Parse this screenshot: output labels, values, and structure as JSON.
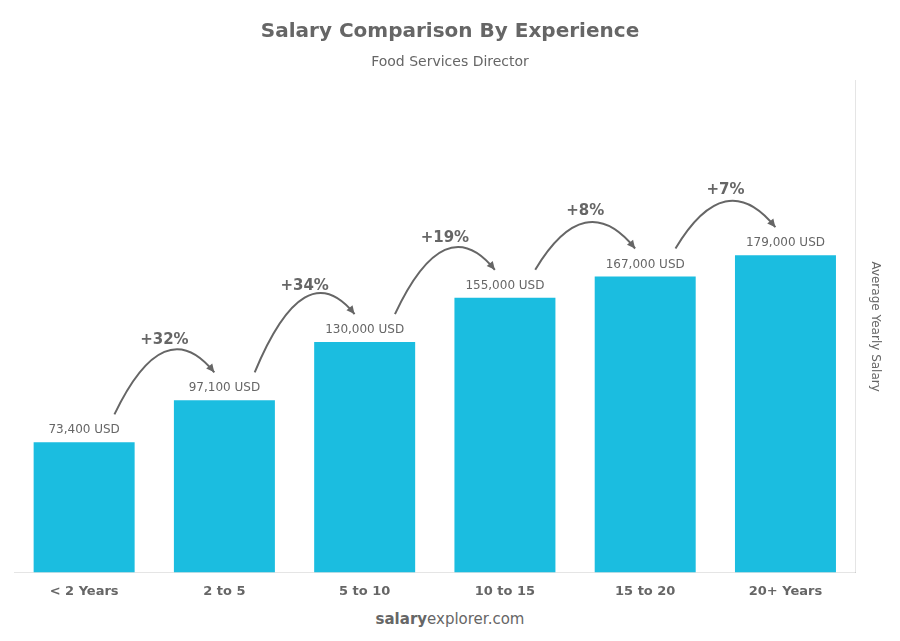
{
  "chart_data": {
    "type": "bar",
    "title": "Salary Comparison By Experience",
    "subtitle": "Food Services Director",
    "categories": [
      "< 2 Years",
      "2 to 5",
      "5 to 10",
      "10 to 15",
      "15 to 20",
      "20+ Years"
    ],
    "values": [
      73400,
      97100,
      130000,
      155000,
      167000,
      179000
    ],
    "value_labels": [
      "73,400 USD",
      "97,100 USD",
      "130,000 USD",
      "155,000 USD",
      "167,000 USD",
      "179,000 USD"
    ],
    "data_labels": true,
    "color": "#1BBDE0",
    "ylabel": "Average Yearly Salary",
    "ylim": [
      0,
      277450
    ],
    "grid": false,
    "tick_labels": "x",
    "annotations": [
      "+32%",
      "+34%",
      "+19%",
      "+8%",
      "+7%"
    ],
    "footer": [
      "salary",
      "explorer.com"
    ]
  }
}
